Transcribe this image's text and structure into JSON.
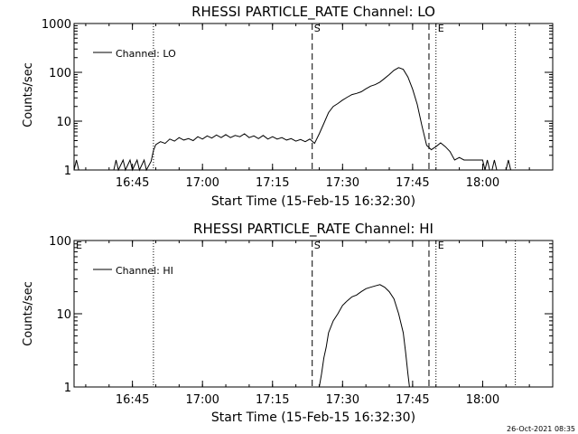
{
  "colors": {
    "background": "#ffffff",
    "foreground": "#000000"
  },
  "footer": {
    "timestamp": "26-Oct-2021 08:35"
  },
  "chart_data": [
    {
      "type": "line",
      "title": "RHESSI PARTICLE_RATE Channel: LO",
      "xlabel": "Start Time (15-Feb-15 16:32:30)",
      "ylabel": "Counts/sec",
      "xlim": [
        "16:32:30",
        "18:15:00"
      ],
      "ylim": [
        1,
        1000
      ],
      "yscale": "log",
      "xticks": [
        "16:45",
        "17:00",
        "17:15",
        "17:30",
        "17:45",
        "18:00"
      ],
      "yticks": [
        "1",
        "10",
        "100",
        "1000"
      ],
      "legend": {
        "placement": "top-left",
        "entries": [
          "Channel: LO"
        ]
      },
      "markers": [
        {
          "time": "16:49:30",
          "style": "dotted",
          "label": ""
        },
        {
          "time": "17:23:30",
          "style": "dashed",
          "label": "S"
        },
        {
          "time": "17:48:30",
          "style": "dashed",
          "label": ""
        },
        {
          "time": "17:50:00",
          "style": "dotted",
          "label": "E"
        },
        {
          "time": "18:07:00",
          "style": "dotted",
          "label": ""
        }
      ],
      "series": [
        {
          "name": "Channel: LO",
          "points": [
            [
              "16:32:30",
              1
            ],
            [
              "16:33:00",
              1.6
            ],
            [
              "16:33:30",
              1
            ],
            [
              "16:41:00",
              1
            ],
            [
              "16:41:30",
              1.6
            ],
            [
              "16:42:00",
              1
            ],
            [
              "16:43:00",
              1.6
            ],
            [
              "16:43:30",
              1
            ],
            [
              "16:44:30",
              1.6
            ],
            [
              "16:45:00",
              1
            ],
            [
              "16:46:00",
              1.6
            ],
            [
              "16:46:30",
              1
            ],
            [
              "16:47:30",
              1.6
            ],
            [
              "16:48:00",
              1
            ],
            [
              "16:49:00",
              1.5
            ],
            [
              "16:49:30",
              2.5
            ],
            [
              "16:50:00",
              3.3
            ],
            [
              "16:51:00",
              3.8
            ],
            [
              "16:52:00",
              3.5
            ],
            [
              "16:53:00",
              4.3
            ],
            [
              "16:54:00",
              3.9
            ],
            [
              "16:55:00",
              4.6
            ],
            [
              "16:56:00",
              4.1
            ],
            [
              "16:57:00",
              4.4
            ],
            [
              "16:58:00",
              4
            ],
            [
              "16:59:00",
              4.8
            ],
            [
              "17:00:00",
              4.3
            ],
            [
              "17:01:00",
              5
            ],
            [
              "17:02:00",
              4.5
            ],
            [
              "17:03:00",
              5.2
            ],
            [
              "17:04:00",
              4.6
            ],
            [
              "17:05:00",
              5.3
            ],
            [
              "17:06:00",
              4.6
            ],
            [
              "17:07:00",
              5.1
            ],
            [
              "17:08:00",
              4.8
            ],
            [
              "17:09:00",
              5.5
            ],
            [
              "17:10:00",
              4.6
            ],
            [
              "17:11:00",
              5
            ],
            [
              "17:12:00",
              4.4
            ],
            [
              "17:13:00",
              5.1
            ],
            [
              "17:14:00",
              4.3
            ],
            [
              "17:15:00",
              4.8
            ],
            [
              "17:16:00",
              4.3
            ],
            [
              "17:17:00",
              4.6
            ],
            [
              "17:18:00",
              4.1
            ],
            [
              "17:19:00",
              4.4
            ],
            [
              "17:20:00",
              3.9
            ],
            [
              "17:21:00",
              4.2
            ],
            [
              "17:22:00",
              3.8
            ],
            [
              "17:23:00",
              4.3
            ],
            [
              "17:24:00",
              3.5
            ],
            [
              "17:25:00",
              5.5
            ],
            [
              "17:26:00",
              9
            ],
            [
              "17:27:00",
              15
            ],
            [
              "17:28:00",
              20
            ],
            [
              "17:29:00",
              23
            ],
            [
              "17:30:00",
              27
            ],
            [
              "17:31:00",
              31
            ],
            [
              "17:32:00",
              35
            ],
            [
              "17:33:00",
              37
            ],
            [
              "17:34:00",
              40
            ],
            [
              "17:35:00",
              46
            ],
            [
              "17:36:00",
              52
            ],
            [
              "17:37:00",
              56
            ],
            [
              "17:38:00",
              63
            ],
            [
              "17:39:00",
              75
            ],
            [
              "17:40:00",
              90
            ],
            [
              "17:41:00",
              110
            ],
            [
              "17:42:00",
              125
            ],
            [
              "17:43:00",
              115
            ],
            [
              "17:44:00",
              80
            ],
            [
              "17:45:00",
              45
            ],
            [
              "17:46:00",
              22
            ],
            [
              "17:47:00",
              8
            ],
            [
              "17:48:00",
              3.2
            ],
            [
              "17:49:00",
              2.6
            ],
            [
              "17:50:00",
              3
            ],
            [
              "17:51:00",
              3.6
            ],
            [
              "17:52:00",
              3
            ],
            [
              "17:53:00",
              2.4
            ],
            [
              "17:54:00",
              1.6
            ],
            [
              "17:55:00",
              1.8
            ],
            [
              "17:56:00",
              1.6
            ],
            [
              "17:57:00",
              1.6
            ],
            [
              "17:58:00",
              1.6
            ],
            [
              "17:59:00",
              1.6
            ],
            [
              "18:00:00",
              1.6
            ],
            [
              "18:00:30",
              1
            ],
            [
              "18:01:00",
              1.6
            ],
            [
              "18:01:30",
              1
            ],
            [
              "18:02:00",
              1
            ],
            [
              "18:02:30",
              1.6
            ],
            [
              "18:03:00",
              1
            ],
            [
              "18:05:00",
              1
            ],
            [
              "18:05:30",
              1.6
            ],
            [
              "18:06:00",
              1
            ]
          ]
        }
      ]
    },
    {
      "type": "line",
      "title": "RHESSI PARTICLE_RATE Channel: HI",
      "xlabel": "Start Time (15-Feb-15 16:32:30)",
      "ylabel": "Counts/sec",
      "xlim": [
        "16:32:30",
        "18:15:00"
      ],
      "ylim": [
        1,
        100
      ],
      "yscale": "log",
      "xticks": [
        "16:45",
        "17:00",
        "17:15",
        "17:30",
        "17:45",
        "18:00"
      ],
      "yticks": [
        "1",
        "10",
        "100"
      ],
      "legend": {
        "placement": "top-left",
        "entries": [
          "Channel: HI"
        ]
      },
      "markers": [
        {
          "time": "16:32:30",
          "style": "none",
          "label": "E"
        },
        {
          "time": "16:49:30",
          "style": "dotted",
          "label": ""
        },
        {
          "time": "17:23:30",
          "style": "dashed",
          "label": "S"
        },
        {
          "time": "17:48:30",
          "style": "dashed",
          "label": ""
        },
        {
          "time": "17:50:00",
          "style": "dotted",
          "label": "E"
        },
        {
          "time": "18:07:00",
          "style": "dotted",
          "label": ""
        }
      ],
      "series": [
        {
          "name": "Channel: HI",
          "points": [
            [
              "17:25:00",
              1
            ],
            [
              "17:25:30",
              1.5
            ],
            [
              "17:26:00",
              2.5
            ],
            [
              "17:26:30",
              3.5
            ],
            [
              "17:27:00",
              5.5
            ],
            [
              "17:28:00",
              8
            ],
            [
              "17:29:00",
              10
            ],
            [
              "17:30:00",
              13
            ],
            [
              "17:31:00",
              15
            ],
            [
              "17:32:00",
              17
            ],
            [
              "17:33:00",
              18
            ],
            [
              "17:34:00",
              20
            ],
            [
              "17:35:00",
              22
            ],
            [
              "17:36:00",
              23
            ],
            [
              "17:37:00",
              24
            ],
            [
              "17:38:00",
              25
            ],
            [
              "17:39:00",
              23
            ],
            [
              "17:40:00",
              20
            ],
            [
              "17:41:00",
              16
            ],
            [
              "17:42:00",
              10
            ],
            [
              "17:43:00",
              5.5
            ],
            [
              "17:43:30",
              3
            ],
            [
              "17:44:00",
              1.5
            ],
            [
              "17:44:20",
              1
            ]
          ]
        }
      ]
    }
  ]
}
